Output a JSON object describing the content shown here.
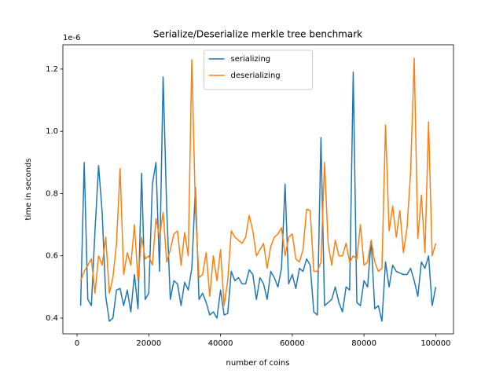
{
  "chart_data": {
    "type": "line",
    "title": "Serialize/Deserialize merkle tree benchmark",
    "xlabel": "number of coins",
    "ylabel": "time in seconds",
    "offset_label": "1e-6",
    "legend": "upper center",
    "x": [
      1000,
      2000,
      3000,
      4000,
      5000,
      6000,
      7000,
      8000,
      9000,
      10000,
      11000,
      12000,
      13000,
      14000,
      15000,
      16000,
      17000,
      18000,
      19000,
      20000,
      21000,
      22000,
      23000,
      24000,
      25000,
      26000,
      27000,
      28000,
      29000,
      30000,
      31000,
      32000,
      33000,
      34000,
      35000,
      36000,
      37000,
      38000,
      39000,
      40000,
      41000,
      42000,
      43000,
      44000,
      45000,
      46000,
      47000,
      48000,
      49000,
      50000,
      51000,
      52000,
      53000,
      54000,
      55000,
      56000,
      57000,
      58000,
      59000,
      60000,
      61000,
      62000,
      63000,
      64000,
      65000,
      66000,
      67000,
      68000,
      69000,
      70000,
      71000,
      72000,
      73000,
      74000,
      75000,
      76000,
      77000,
      78000,
      79000,
      80000,
      81000,
      82000,
      83000,
      84000,
      85000,
      86000,
      87000,
      88000,
      89000,
      90000,
      91000,
      92000,
      93000,
      94000,
      95000,
      96000,
      97000,
      98000,
      99000,
      100000
    ],
    "series": [
      {
        "name": "serializing",
        "color": "#1f77b4",
        "values": [
          0.44,
          0.9,
          0.46,
          0.44,
          0.68,
          0.89,
          0.74,
          0.47,
          0.39,
          0.4,
          0.49,
          0.495,
          0.44,
          0.49,
          0.42,
          0.54,
          0.43,
          0.865,
          0.46,
          0.48,
          0.83,
          0.9,
          0.55,
          1.175,
          0.75,
          0.46,
          0.52,
          0.51,
          0.44,
          0.515,
          0.49,
          0.56,
          0.82,
          0.46,
          0.48,
          0.45,
          0.41,
          0.42,
          0.4,
          0.49,
          0.41,
          0.415,
          0.55,
          0.52,
          0.53,
          0.51,
          0.51,
          0.555,
          0.54,
          0.46,
          0.53,
          0.51,
          0.46,
          0.55,
          0.53,
          0.5,
          0.56,
          0.83,
          0.51,
          0.54,
          0.495,
          0.56,
          0.55,
          0.59,
          0.57,
          0.42,
          0.41,
          0.98,
          0.44,
          0.45,
          0.46,
          0.5,
          0.45,
          0.42,
          0.5,
          0.49,
          1.19,
          0.45,
          0.44,
          0.52,
          0.5,
          0.65,
          0.43,
          0.44,
          0.39,
          0.58,
          0.5,
          0.57,
          0.55,
          0.545,
          0.54,
          0.54,
          0.56,
          0.52,
          0.47,
          0.58,
          0.56,
          0.6,
          0.44,
          0.5
        ]
      },
      {
        "name": "deserializing",
        "color": "#ff7f0e",
        "values": [
          0.52,
          0.55,
          0.57,
          0.59,
          0.48,
          0.6,
          0.57,
          0.66,
          0.48,
          0.53,
          0.64,
          0.88,
          0.54,
          0.61,
          0.57,
          0.7,
          0.52,
          0.66,
          0.59,
          0.6,
          0.57,
          0.72,
          0.66,
          0.74,
          0.58,
          0.62,
          0.67,
          0.68,
          0.57,
          0.675,
          0.6,
          1.23,
          0.75,
          0.53,
          0.54,
          0.61,
          0.47,
          0.6,
          0.52,
          0.62,
          0.44,
          0.52,
          0.68,
          0.66,
          0.65,
          0.64,
          0.66,
          0.73,
          0.68,
          0.6,
          0.62,
          0.64,
          0.56,
          0.63,
          0.66,
          0.67,
          0.69,
          0.6,
          0.66,
          0.67,
          0.59,
          0.58,
          0.62,
          0.75,
          0.745,
          0.55,
          0.55,
          0.58,
          0.9,
          0.64,
          0.57,
          0.65,
          0.6,
          0.6,
          0.64,
          0.58,
          0.6,
          0.59,
          0.7,
          0.57,
          0.58,
          0.65,
          0.58,
          0.55,
          0.56,
          1.02,
          0.68,
          0.76,
          0.66,
          0.745,
          0.61,
          0.69,
          0.87,
          1.235,
          0.655,
          0.795,
          0.61,
          1.03,
          0.6,
          0.64
        ]
      }
    ],
    "xlim": [
      -3950,
      104950
    ],
    "xticks": [
      0,
      20000,
      40000,
      60000,
      80000,
      100000
    ],
    "ylim": [
      0.3495,
      1.278
    ],
    "yticks": [
      0.4,
      0.6,
      0.8,
      {
        "value": 1,
        "label": "1.0"
      },
      1.2
    ]
  }
}
